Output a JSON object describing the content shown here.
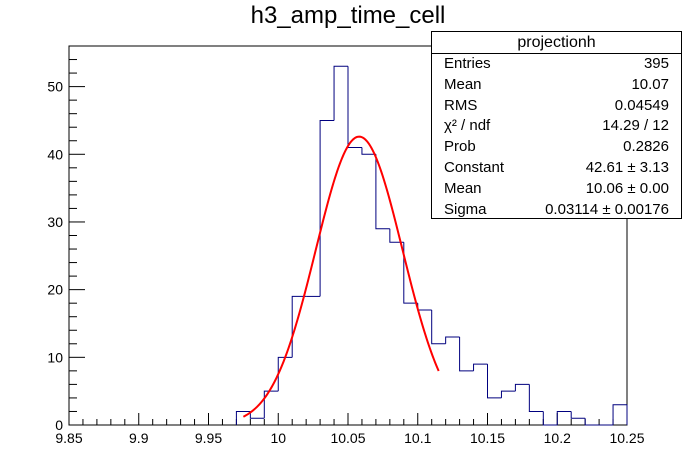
{
  "title": "h3_amp_time_cell",
  "stats": {
    "name": "projectionh",
    "rows": [
      {
        "label": "Entries",
        "value": "395"
      },
      {
        "label": "Mean",
        "value": "10.07"
      },
      {
        "label": "RMS",
        "value": "0.04549"
      },
      {
        "label": "χ² / ndf",
        "value": "14.29 / 12"
      },
      {
        "label": "Prob",
        "value": "0.2826"
      },
      {
        "label": "Constant",
        "value": "42.61 ± 3.13"
      },
      {
        "label": "Mean",
        "value": "10.06 ± 0.00"
      },
      {
        "label": "Sigma",
        "value": "0.03114 ± 0.00176"
      }
    ]
  },
  "colors": {
    "histogram": "#00007f",
    "fit": "#ff0000",
    "axis": "#000000"
  },
  "chart_data": {
    "type": "bar",
    "style": "step-histogram",
    "title": "h3_amp_time_cell",
    "xlabel": "",
    "ylabel": "",
    "xlim": [
      9.85,
      10.25
    ],
    "ylim": [
      0,
      56
    ],
    "grid": false,
    "bin_width": 0.01,
    "bin_edges_start": 9.97,
    "bins": [
      {
        "x0": 9.97,
        "x1": 9.98,
        "count": 2
      },
      {
        "x0": 9.98,
        "x1": 9.99,
        "count": 1
      },
      {
        "x0": 9.99,
        "x1": 10.0,
        "count": 5
      },
      {
        "x0": 10.0,
        "x1": 10.01,
        "count": 10
      },
      {
        "x0": 10.01,
        "x1": 10.02,
        "count": 19
      },
      {
        "x0": 10.02,
        "x1": 10.03,
        "count": 19
      },
      {
        "x0": 10.03,
        "x1": 10.04,
        "count": 45
      },
      {
        "x0": 10.04,
        "x1": 10.05,
        "count": 53
      },
      {
        "x0": 10.05,
        "x1": 10.06,
        "count": 41
      },
      {
        "x0": 10.06,
        "x1": 10.07,
        "count": 40
      },
      {
        "x0": 10.07,
        "x1": 10.08,
        "count": 29
      },
      {
        "x0": 10.08,
        "x1": 10.09,
        "count": 27
      },
      {
        "x0": 10.09,
        "x1": 10.1,
        "count": 18
      },
      {
        "x0": 10.1,
        "x1": 10.11,
        "count": 17
      },
      {
        "x0": 10.11,
        "x1": 10.12,
        "count": 12
      },
      {
        "x0": 10.12,
        "x1": 10.13,
        "count": 13
      },
      {
        "x0": 10.13,
        "x1": 10.14,
        "count": 8
      },
      {
        "x0": 10.14,
        "x1": 10.15,
        "count": 9
      },
      {
        "x0": 10.15,
        "x1": 10.16,
        "count": 4
      },
      {
        "x0": 10.16,
        "x1": 10.17,
        "count": 5
      },
      {
        "x0": 10.17,
        "x1": 10.18,
        "count": 6
      },
      {
        "x0": 10.18,
        "x1": 10.19,
        "count": 2
      },
      {
        "x0": 10.19,
        "x1": 10.2,
        "count": 0
      },
      {
        "x0": 10.2,
        "x1": 10.21,
        "count": 2
      },
      {
        "x0": 10.21,
        "x1": 10.22,
        "count": 1
      },
      {
        "x0": 10.22,
        "x1": 10.23,
        "count": 0
      },
      {
        "x0": 10.23,
        "x1": 10.24,
        "count": 0
      },
      {
        "x0": 10.24,
        "x1": 10.25,
        "count": 3
      }
    ],
    "fit": {
      "function": "gaus",
      "constant": 42.61,
      "mean": 10.058,
      "sigma": 0.03114,
      "range": [
        9.975,
        10.115
      ]
    },
    "x_ticks": [
      "9.85",
      "9.9",
      "9.95",
      "10",
      "10.05",
      "10.1",
      "10.15",
      "10.2",
      "10.25"
    ],
    "y_ticks": [
      "0",
      "10",
      "20",
      "30",
      "40",
      "50"
    ]
  }
}
